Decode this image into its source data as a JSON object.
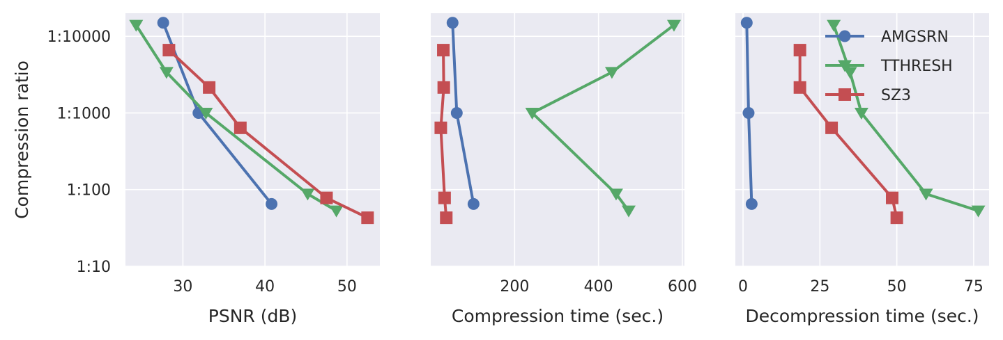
{
  "chart_data": [
    {
      "type": "line",
      "xlabel": "PSNR (dB)",
      "ylabel": "Compression ratio",
      "xlim": [
        23,
        54
      ],
      "ylim": [
        10,
        20000
      ],
      "yscale": "log",
      "grid": true,
      "xticks": [
        30,
        40,
        50
      ],
      "xtick_labels": [
        "30",
        "40",
        "50"
      ],
      "yticks": [
        10,
        100,
        1000,
        10000
      ],
      "ytick_labels": [
        "1:10",
        "1:100",
        "1:1000",
        "1:10000"
      ],
      "series": [
        {
          "name": "AMGSRN",
          "x": [
            27.6,
            31.9,
            40.8
          ],
          "y": [
            15000,
            1000,
            65
          ]
        },
        {
          "name": "TTHRESH",
          "x": [
            24.3,
            28.0,
            32.8,
            45.2,
            48.7
          ],
          "y": [
            14000,
            3400,
            1000,
            88,
            53
          ]
        },
        {
          "name": "SZ3",
          "x": [
            28.3,
            33.2,
            37.0,
            47.5,
            52.5
          ],
          "y": [
            6600,
            2150,
            640,
            78,
            43
          ]
        }
      ]
    },
    {
      "type": "line",
      "xlabel": "Compression time (sec.)",
      "xlim": [
        0,
        605
      ],
      "ylim": [
        10,
        20000
      ],
      "yscale": "log",
      "grid": true,
      "xticks": [
        200,
        400,
        600
      ],
      "xtick_labels": [
        "200",
        "400",
        "600"
      ],
      "series": [
        {
          "name": "AMGSRN",
          "x": [
            52,
            62,
            102
          ],
          "y": [
            15000,
            1000,
            65
          ]
        },
        {
          "name": "TTHRESH",
          "x": [
            580,
            432,
            242,
            442,
            472
          ],
          "y": [
            14000,
            3400,
            1000,
            88,
            53
          ]
        },
        {
          "name": "SZ3",
          "x": [
            30,
            31,
            24,
            33,
            37
          ],
          "y": [
            6600,
            2150,
            640,
            78,
            43
          ]
        }
      ]
    },
    {
      "type": "line",
      "xlabel": "Decompression time (sec.)",
      "xlim": [
        -2.5,
        80
      ],
      "ylim": [
        10,
        20000
      ],
      "yscale": "log",
      "grid": true,
      "xticks": [
        0,
        25,
        50,
        75
      ],
      "xtick_labels": [
        "0",
        "25",
        "50",
        "75"
      ],
      "legend": "top-right",
      "series": [
        {
          "name": "AMGSRN",
          "x": [
            1.2,
            1.8,
            2.8
          ],
          "y": [
            15000,
            1000,
            65
          ]
        },
        {
          "name": "TTHRESH",
          "x": [
            29.5,
            34.8,
            38.5,
            59.5,
            76.5
          ],
          "y": [
            14000,
            3400,
            1000,
            88,
            53
          ]
        },
        {
          "name": "SZ3",
          "x": [
            18.5,
            18.5,
            28.8,
            48.5,
            50.0
          ],
          "y": [
            6600,
            2150,
            640,
            78,
            43
          ]
        }
      ]
    }
  ],
  "series_styles": [
    {
      "color": "#4c72b0",
      "marker": "circle"
    },
    {
      "color": "#55a868",
      "marker": "triangle-down"
    },
    {
      "color": "#c44e52",
      "marker": "square"
    }
  ],
  "theme": {
    "panel_bg": "#eaeaf2",
    "grid_color": "#ffffff",
    "text_color": "#262626"
  }
}
